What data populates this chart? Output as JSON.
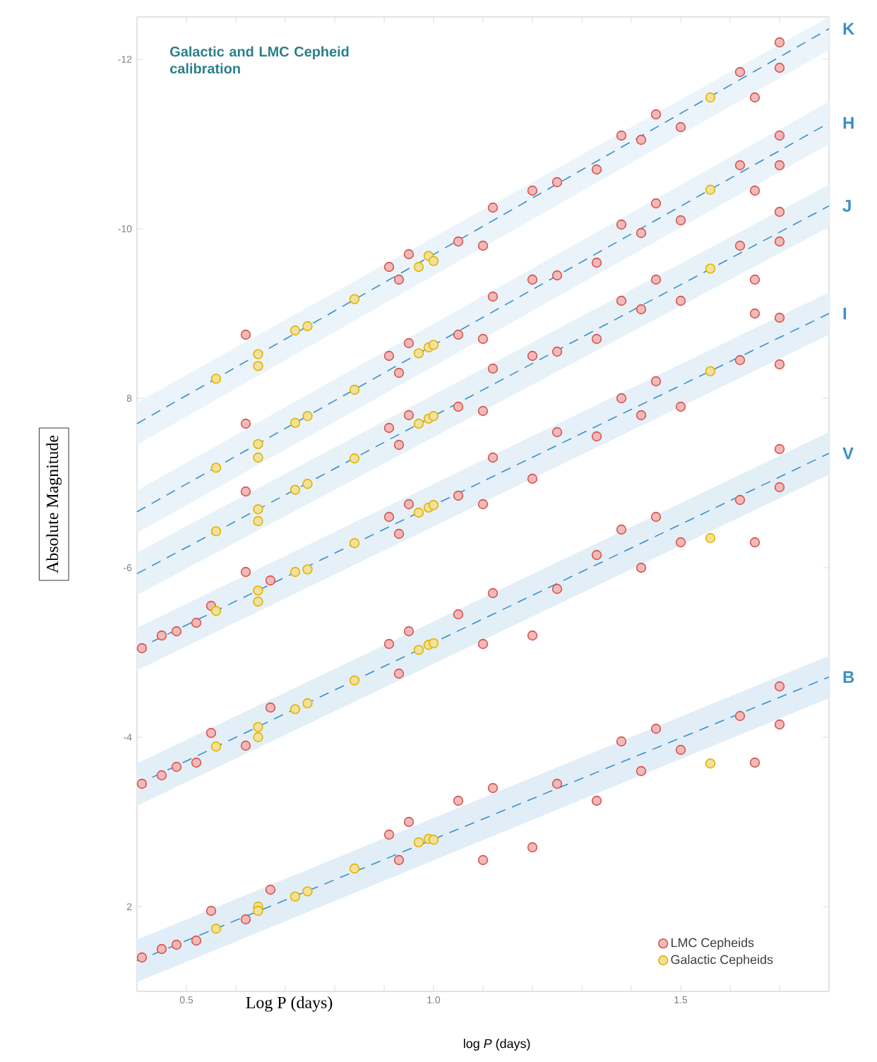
{
  "chart_data": {
    "type": "scatter",
    "title": "Galactic and LMC Cepheid calibration",
    "xlabel": "log *P* (days)",
    "ylabel": "Absolute Magnitude",
    "annotations": [
      "Log P (days)"
    ],
    "xlim": [
      0.4,
      1.8
    ],
    "ylim": [
      -1.0,
      -12.5
    ],
    "xticks": [
      0.5,
      {
        "value": 0.6,
        "label": null
      },
      {
        "value": 0.7,
        "label": null
      },
      {
        "value": 0.8,
        "label": null
      },
      {
        "value": 0.9,
        "label": null
      },
      {
        "value": 1.0,
        "label": "1.0"
      },
      {
        "value": 1.1,
        "label": null
      },
      {
        "value": 1.2,
        "label": null
      },
      {
        "value": 1.3,
        "label": null
      },
      {
        "value": 1.4,
        "label": null
      },
      1.5,
      {
        "value": 1.6,
        "label": null
      },
      {
        "value": 1.7,
        "label": null
      }
    ],
    "yticks": [
      -12,
      -10,
      {
        "value": -8,
        "label": "8"
      },
      -6,
      -4,
      {
        "value": -2,
        "label": "2"
      }
    ],
    "legend": "bottom right",
    "series": [
      {
        "type": "line",
        "name": "K",
        "color": "#3a8fc8",
        "line_style": "dashed",
        "x": [
          0.4,
          1.8
        ],
        "values": [
          -7.7,
          -12.36
        ],
        "upper": [
          -7.95,
          -12.5
        ],
        "lower": [
          -7.45,
          -12.11
        ]
      },
      {
        "type": "line",
        "name": "H",
        "color": "#3a8fc8",
        "line_style": "dashed",
        "x": [
          0.4,
          1.8
        ],
        "values": [
          -6.66,
          -11.25
        ],
        "upper": [
          -6.91,
          -11.5
        ],
        "lower": [
          -6.41,
          -11.0
        ]
      },
      {
        "type": "line",
        "name": "J",
        "color": "#3a8fc8",
        "line_style": "dashed",
        "x": [
          0.4,
          1.8
        ],
        "values": [
          -5.93,
          -10.27
        ],
        "upper": [
          -6.18,
          -10.52
        ],
        "lower": [
          -5.68,
          -10.02
        ]
      },
      {
        "type": "line",
        "name": "I",
        "color": "#3a8fc8",
        "line_style": "dashed",
        "x": [
          0.4,
          1.8
        ],
        "values": [
          -5.04,
          -9.0
        ],
        "upper": [
          -5.29,
          -9.25
        ],
        "lower": [
          -4.79,
          -8.75
        ]
      },
      {
        "type": "line",
        "name": "V",
        "color": "#3a8fc8",
        "line_style": "dashed",
        "x": [
          0.4,
          1.8
        ],
        "values": [
          -3.44,
          -7.35
        ],
        "upper": [
          -3.69,
          -7.6
        ],
        "lower": [
          -3.19,
          -7.1
        ]
      },
      {
        "type": "line",
        "name": "B",
        "color": "#3a8fc8",
        "line_style": "dashed",
        "x": [
          0.4,
          1.8
        ],
        "values": [
          -1.36,
          -4.71
        ],
        "upper": [
          -1.61,
          -4.96
        ],
        "lower": [
          -1.11,
          -4.46
        ]
      },
      {
        "name": "LMC Cepheids",
        "color": "#d9534f",
        "marker": "circle",
        "x": [
          0.62,
          0.91,
          0.93,
          0.95,
          1.05,
          1.1,
          1.12,
          1.2,
          1.25,
          1.33,
          1.38,
          1.42,
          1.45,
          1.5,
          1.62,
          1.7,
          1.7,
          1.65,
          0.62,
          0.91,
          0.93,
          0.95,
          1.05,
          1.1,
          1.12,
          1.2,
          1.25,
          1.33,
          1.38,
          1.42,
          1.45,
          1.5,
          1.62,
          1.7,
          1.7,
          1.65,
          0.62,
          0.91,
          0.93,
          0.95,
          1.05,
          1.1,
          1.12,
          1.2,
          1.25,
          1.33,
          1.38,
          1.42,
          1.45,
          1.5,
          1.62,
          1.7,
          1.7,
          1.65,
          0.41,
          0.45,
          0.48,
          0.52,
          0.55,
          0.62,
          0.67,
          0.91,
          0.93,
          0.95,
          1.05,
          1.1,
          1.12,
          1.2,
          1.25,
          1.33,
          1.38,
          1.42,
          1.45,
          1.5,
          1.62,
          1.7,
          1.7,
          1.65,
          0.41,
          0.45,
          0.48,
          0.52,
          0.55,
          0.62,
          0.67,
          0.91,
          0.93,
          0.95,
          1.05,
          1.1,
          1.12,
          1.2,
          1.25,
          1.33,
          1.38,
          1.42,
          1.45,
          1.5,
          1.62,
          1.7,
          1.7,
          1.65,
          0.41,
          0.45,
          0.48,
          0.52,
          0.55,
          0.62,
          0.67,
          0.91,
          0.93,
          0.95,
          1.05,
          1.1,
          1.12,
          1.2,
          1.25,
          1.33,
          1.38,
          1.42,
          1.45,
          1.5,
          1.62,
          1.7,
          1.7,
          1.65
        ],
        "values": [
          -8.75,
          -9.55,
          -9.4,
          -9.7,
          -9.85,
          -9.8,
          -10.25,
          -10.45,
          -10.55,
          -10.7,
          -11.1,
          -11.05,
          -11.35,
          -11.2,
          -11.85,
          -12.2,
          -11.9,
          -11.55,
          -7.7,
          -8.5,
          -8.3,
          -8.65,
          -8.75,
          -8.7,
          -9.2,
          -9.4,
          -9.45,
          -9.6,
          -10.05,
          -9.95,
          -10.3,
          -10.1,
          -10.75,
          -11.1,
          -10.75,
          -10.45,
          -6.9,
          -7.65,
          -7.45,
          -7.8,
          -7.9,
          -7.85,
          -8.35,
          -8.5,
          -8.55,
          -8.7,
          -9.15,
          -9.05,
          -9.4,
          -9.15,
          -9.8,
          -10.2,
          -9.85,
          -9.4,
          -5.05,
          -5.2,
          -5.25,
          -5.35,
          -5.55,
          -5.95,
          -5.85,
          -6.6,
          -6.4,
          -6.75,
          -6.85,
          -6.75,
          -7.3,
          -7.05,
          -7.6,
          -7.55,
          -8.0,
          -7.8,
          -8.2,
          -7.9,
          -8.45,
          -8.95,
          -8.4,
          -9.0,
          -3.45,
          -3.55,
          -3.65,
          -3.7,
          -4.05,
          -3.9,
          -4.35,
          -5.1,
          -4.75,
          -5.25,
          -5.45,
          -5.1,
          -5.7,
          -5.2,
          -5.75,
          -6.15,
          -6.45,
          -6.0,
          -6.6,
          -6.3,
          -6.8,
          -7.4,
          -6.95,
          -6.3,
          -1.4,
          -1.5,
          -1.55,
          -1.6,
          -1.95,
          -1.85,
          -2.2,
          -2.85,
          -2.55,
          -3.0,
          -3.25,
          -2.55,
          -3.4,
          -2.7,
          -3.45,
          -3.25,
          -3.95,
          -3.6,
          -4.1,
          -3.85,
          -4.25,
          -4.6,
          -4.15,
          -3.7
        ]
      },
      {
        "name": "Galactic Cepheids",
        "color": "#e0b400",
        "marker": "circle",
        "x": [
          0.56,
          0.645,
          0.645,
          0.72,
          0.745,
          0.84,
          0.97,
          0.99,
          1.0,
          1.56,
          0.56,
          0.645,
          0.645,
          0.72,
          0.745,
          0.84,
          0.97,
          0.99,
          1.0,
          1.56,
          0.56,
          0.645,
          0.645,
          0.72,
          0.745,
          0.84,
          0.97,
          0.99,
          1.0,
          1.56,
          0.56,
          0.645,
          0.645,
          0.72,
          0.745,
          0.84,
          0.97,
          0.99,
          1.0,
          1.56,
          0.56,
          0.645,
          0.645,
          0.72,
          0.745,
          0.84,
          0.97,
          0.99,
          1.0,
          1.56,
          0.56,
          0.645,
          0.645,
          0.72,
          0.745,
          0.84,
          0.97,
          0.99,
          1.0,
          1.56
        ],
        "values": [
          -8.23,
          -8.52,
          -8.38,
          -8.8,
          -8.85,
          -9.17,
          -9.55,
          -9.68,
          -9.62,
          -11.55,
          -7.18,
          -7.46,
          -7.3,
          -7.71,
          -7.79,
          -8.1,
          -8.53,
          -8.6,
          -8.63,
          -10.46,
          -6.43,
          -6.69,
          -6.55,
          -6.92,
          -6.99,
          -7.29,
          -7.7,
          -7.76,
          -7.79,
          -9.53,
          -5.49,
          -5.73,
          -5.6,
          -5.95,
          -5.98,
          -6.29,
          -6.65,
          -6.71,
          -6.74,
          -8.32,
          -3.89,
          -4.12,
          -4.0,
          -4.33,
          -4.4,
          -4.67,
          -5.03,
          -5.09,
          -5.11,
          -6.35,
          -1.74,
          -2.0,
          -1.95,
          -2.12,
          -2.18,
          -2.45,
          -2.76,
          -2.8,
          -2.79,
          -3.69
        ]
      }
    ]
  }
}
